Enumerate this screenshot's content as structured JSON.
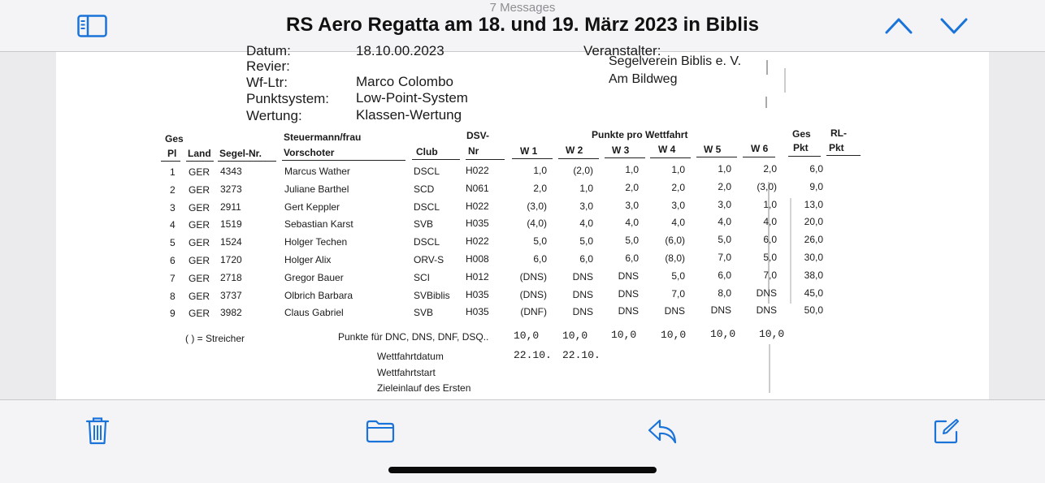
{
  "header": {
    "message_count": "7 Messages",
    "subject": "RS Aero Regatta am 18. und 19. März 2023 in Biblis",
    "icons": {
      "sidebar": "sidebar-icon",
      "prev": "chevron-up-icon",
      "next": "chevron-down-icon"
    },
    "accent_color": "#1a73d9"
  },
  "document": {
    "meta": {
      "datum_label": "Datum:",
      "datum_value": "18.10.00.2023",
      "revier_label": "Revier:",
      "wfltr_label": "Wf-Ltr:",
      "wfltr_value": "Marco Colombo",
      "punktsystem_label": "Punktsystem:",
      "punktsystem_value": "Low-Point-System",
      "wertung_label": "Wertung:",
      "wertung_value": "Klassen-Wertung",
      "veranstalter_label": "Veranstalter:",
      "veranstalter_name": "Segelverein Biblis e. V.",
      "veranstalter_street": "Am Bildweg"
    },
    "table_headers": {
      "ges_top": "Ges",
      "pl": "Pl",
      "land": "Land",
      "segel_nr": "Segel-Nr.",
      "steuermann": "Steuermann/frau",
      "vorschoter": "Vorschoter",
      "club": "Club",
      "dsv_top": "DSV-",
      "dsv_nr": "Nr",
      "punkte_pro_wettfahrt": "Punkte pro Wettfahrt",
      "w1": "W 1",
      "w2": "W 2",
      "w3": "W 3",
      "w4": "W 4",
      "w5": "W 5",
      "w6": "W 6",
      "ges_pkt_top": "Ges",
      "ges_pkt": "Pkt",
      "rl_top": "RL-",
      "rl_pkt": "Pkt"
    },
    "rows": [
      {
        "pl": "1",
        "land": "GER",
        "segel": "4343",
        "name": "Marcus Wather",
        "club": "DSCL",
        "dsv": "H022",
        "w1": "1,0",
        "w2": "(2,0)",
        "w3": "1,0",
        "w4": "1,0",
        "w5": "1,0",
        "w6": "2,0",
        "ges": "6,0"
      },
      {
        "pl": "2",
        "land": "GER",
        "segel": "3273",
        "name": "Juliane Barthel",
        "club": "SCD",
        "dsv": "N061",
        "w1": "2,0",
        "w2": "1,0",
        "w3": "2,0",
        "w4": "2,0",
        "w5": "2,0",
        "w6": "(3,0)",
        "ges": "9,0"
      },
      {
        "pl": "3",
        "land": "GER",
        "segel": "2911",
        "name": "Gert Keppler",
        "club": "DSCL",
        "dsv": "H022",
        "w1": "(3,0)",
        "w2": "3,0",
        "w3": "3,0",
        "w4": "3,0",
        "w5": "3,0",
        "w6": "1,0",
        "ges": "13,0"
      },
      {
        "pl": "4",
        "land": "GER",
        "segel": "1519",
        "name": "Sebastian Karst",
        "club": "SVB",
        "dsv": "H035",
        "w1": "(4,0)",
        "w2": "4,0",
        "w3": "4,0",
        "w4": "4,0",
        "w5": "4,0",
        "w6": "4,0",
        "ges": "20,0"
      },
      {
        "pl": "5",
        "land": "GER",
        "segel": "1524",
        "name": "Holger Techen",
        "club": "DSCL",
        "dsv": "H022",
        "w1": "5,0",
        "w2": "5,0",
        "w3": "5,0",
        "w4": "(6,0)",
        "w5": "5,0",
        "w6": "6,0",
        "ges": "26,0"
      },
      {
        "pl": "6",
        "land": "GER",
        "segel": "1720",
        "name": "Holger Alix",
        "club": "ORV-S",
        "dsv": "H008",
        "w1": "6,0",
        "w2": "6,0",
        "w3": "6,0",
        "w4": "(8,0)",
        "w5": "7,0",
        "w6": "5,0",
        "ges": "30,0"
      },
      {
        "pl": "7",
        "land": "GER",
        "segel": "2718",
        "name": "Gregor Bauer",
        "club": "SCI",
        "dsv": "H012",
        "w1": "(DNS)",
        "w2": "DNS",
        "w3": "DNS",
        "w4": "5,0",
        "w5": "6,0",
        "w6": "7,0",
        "ges": "38,0"
      },
      {
        "pl": "8",
        "land": "GER",
        "segel": "3737",
        "name": "Olbrich Barbara",
        "club": "SVBiblis",
        "dsv": "H035",
        "w1": "(DNS)",
        "w2": "DNS",
        "w3": "DNS",
        "w4": "7,0",
        "w5": "8,0",
        "w6": "DNS",
        "ges": "45,0"
      },
      {
        "pl": "9",
        "land": "GER",
        "segel": "3982",
        "name": "Claus Gabriel",
        "club": "SVB",
        "dsv": "H035",
        "w1": "(DNF)",
        "w2": "DNS",
        "w3": "DNS",
        "w4": "DNS",
        "w5": "DNS",
        "w6": "DNS",
        "ges": "50,0"
      }
    ],
    "footer": {
      "streicher": "( ) = Streicher",
      "punkte_label": "Punkte für DNC, DNS, DNF, DSQ..",
      "punkte_values": [
        "10,0",
        "10,0",
        "10,0",
        "10,0",
        "10,0",
        "10,0"
      ],
      "wettfahrtdatum": "Wettfahrtdatum",
      "wettfahrtdatum_values": [
        "22.10.",
        "22.10."
      ],
      "wettfahrtstart": "Wettfahrtstart",
      "zieleinlauf": "Zieleinlauf des Ersten"
    }
  },
  "toolbar": {
    "icons": {
      "trash": "trash-icon",
      "folder": "folder-icon",
      "reply": "reply-icon",
      "compose": "compose-icon"
    }
  }
}
